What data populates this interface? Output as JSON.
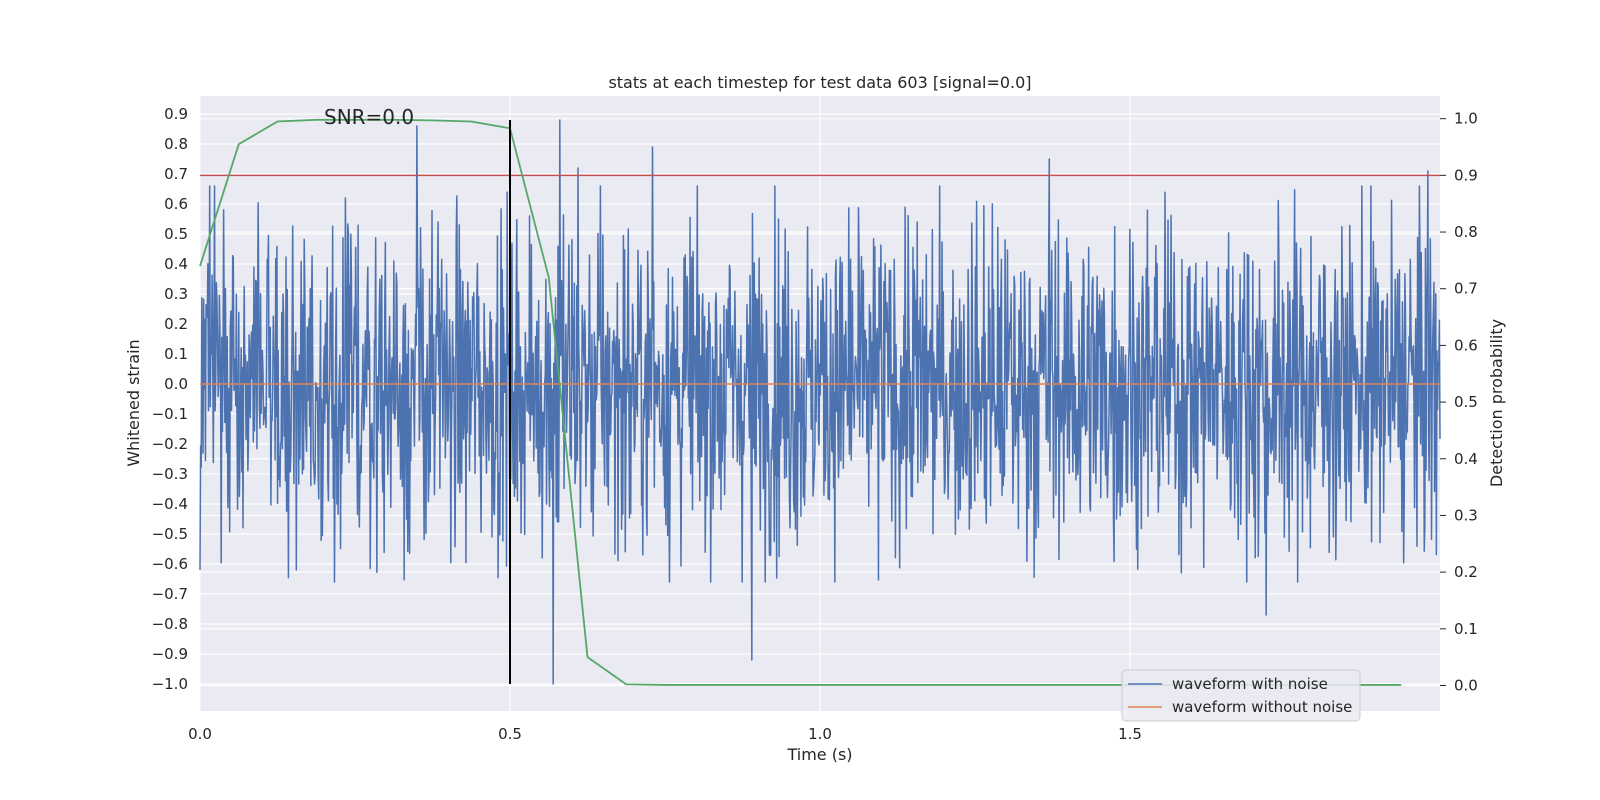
{
  "chart_data": {
    "type": "line",
    "title": "stats at each timestep for test data 603 [signal=0.0]",
    "xlabel": "Time (s)",
    "ylabel": "Whitened strain",
    "ylabel_right": "Detection probability",
    "annotation": "SNR=0.0",
    "xlim": [
      0.0,
      2.0
    ],
    "ylim": [
      -1.09,
      0.96
    ],
    "ylim_right": [
      -0.045,
      1.04
    ],
    "x_ticks": [
      {
        "value": 0.0,
        "label": "0.0"
      },
      {
        "value": 0.5,
        "label": "0.5"
      },
      {
        "value": 1.0,
        "label": "1.0"
      },
      {
        "value": 1.5,
        "label": "1.5"
      }
    ],
    "y_ticks": [
      {
        "value": 0.9,
        "label": "0.9"
      },
      {
        "value": 0.8,
        "label": "0.8"
      },
      {
        "value": 0.7,
        "label": "0.7"
      },
      {
        "value": 0.6,
        "label": "0.6"
      },
      {
        "value": 0.5,
        "label": "0.5"
      },
      {
        "value": 0.4,
        "label": "0.4"
      },
      {
        "value": 0.3,
        "label": "0.3"
      },
      {
        "value": 0.2,
        "label": "0.2"
      },
      {
        "value": 0.1,
        "label": "0.1"
      },
      {
        "value": 0.0,
        "label": "0.0"
      },
      {
        "value": -0.1,
        "label": "−0.1"
      },
      {
        "value": -0.2,
        "label": "−0.2"
      },
      {
        "value": -0.3,
        "label": "−0.3"
      },
      {
        "value": -0.4,
        "label": "−0.4"
      },
      {
        "value": -0.5,
        "label": "−0.5"
      },
      {
        "value": -0.6,
        "label": "−0.6"
      },
      {
        "value": -0.7,
        "label": "−0.7"
      },
      {
        "value": -0.8,
        "label": "−0.8"
      },
      {
        "value": -0.9,
        "label": "−0.9"
      },
      {
        "value": -1.0,
        "label": "−1.0"
      }
    ],
    "y_ticks_right": [
      {
        "value": 1.0,
        "label": "1.0"
      },
      {
        "value": 0.9,
        "label": "0.9"
      },
      {
        "value": 0.8,
        "label": "0.8"
      },
      {
        "value": 0.7,
        "label": "0.7"
      },
      {
        "value": 0.6,
        "label": "0.6"
      },
      {
        "value": 0.5,
        "label": "0.5"
      },
      {
        "value": 0.4,
        "label": "0.4"
      },
      {
        "value": 0.3,
        "label": "0.3"
      },
      {
        "value": 0.2,
        "label": "0.2"
      },
      {
        "value": 0.1,
        "label": "0.1"
      },
      {
        "value": 0.0,
        "label": "0.0"
      }
    ],
    "grid": true,
    "legend_position": "bottom-right",
    "series": [
      {
        "name": "waveform with noise",
        "color": "#4c72b0",
        "axis": "left",
        "kind": "noise",
        "x_range": [
          0.0,
          2.0
        ],
        "n_points": 2048,
        "approx_std": 0.27,
        "peaks": [
          {
            "x": 0.35,
            "y": 0.86
          },
          {
            "x": 0.58,
            "y": 0.88
          },
          {
            "x": 0.61,
            "y": 0.72
          },
          {
            "x": 0.73,
            "y": 0.79
          },
          {
            "x": 1.37,
            "y": 0.75
          },
          {
            "x": 1.98,
            "y": 0.71
          },
          {
            "x": 0.57,
            "y": -1.0
          },
          {
            "x": 0.89,
            "y": -0.92
          },
          {
            "x": 1.72,
            "y": -0.77
          },
          {
            "x": 0.0,
            "y": -0.62
          }
        ]
      },
      {
        "name": "waveform without noise",
        "color": "#dd8452",
        "axis": "left",
        "x": [
          0.0,
          2.0
        ],
        "y": [
          0.0,
          0.0
        ]
      },
      {
        "name": "detection probability",
        "color": "#55a868",
        "axis": "right",
        "x": [
          0.0,
          0.0625,
          0.125,
          0.1875,
          0.25,
          0.3125,
          0.375,
          0.4375,
          0.5,
          0.5625,
          0.625,
          0.6875,
          0.75,
          0.8125,
          0.875,
          0.9375,
          1.0,
          1.0625,
          1.125,
          1.1875,
          1.25,
          1.3125,
          1.375,
          1.4375,
          1.5,
          1.5625,
          1.625,
          1.6875,
          1.75,
          1.8125,
          1.875,
          1.9375
        ],
        "y": [
          0.74,
          0.955,
          0.995,
          0.998,
          0.998,
          0.998,
          0.997,
          0.995,
          0.983,
          0.72,
          0.05,
          0.002,
          0.001,
          0.001,
          0.001,
          0.001,
          0.001,
          0.001,
          0.001,
          0.001,
          0.001,
          0.001,
          0.001,
          0.001,
          0.001,
          0.001,
          0.001,
          0.001,
          0.001,
          0.001,
          0.001,
          0.001
        ]
      }
    ],
    "threshold": {
      "axis": "right",
      "value": 0.9,
      "color": "#c44e52"
    },
    "vertical_marker": {
      "x": 0.5,
      "y_from": -1.0,
      "y_to": 0.88,
      "color": "#000000"
    },
    "legend": [
      {
        "label": "waveform with noise",
        "color": "#4c72b0"
      },
      {
        "label": "waveform without noise",
        "color": "#dd8452"
      }
    ],
    "colors": {
      "plot_background": "#eaeaf2",
      "grid": "#ffffff",
      "text": "#262626"
    }
  }
}
